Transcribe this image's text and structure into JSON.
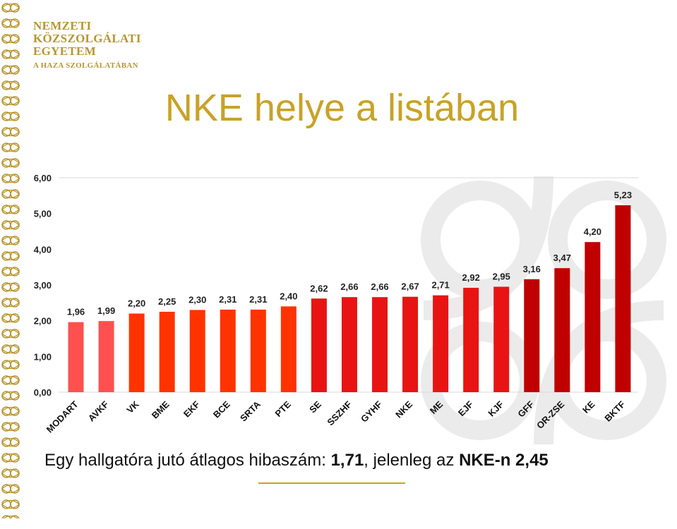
{
  "logo": {
    "line1": "NEMZETI",
    "line2": "KÖZSZOLGÁLATI",
    "line3": "EGYETEM",
    "line4": "A HAZA SZOLGÁLATÁBAN"
  },
  "title": "NKE helye a listában",
  "note": {
    "prefix": "Egy hallgatóra jutó átlagos hibaszám: ",
    "value1": "1,71",
    "middle": ", jelenleg az ",
    "value2": "NKE-n 2,45"
  },
  "colors": {
    "gold": "#c9a227",
    "light_red": "#ff5050",
    "orange_red": "#ff3300",
    "red": "#e81414",
    "dark_red": "#c00000"
  },
  "chart_data": {
    "type": "bar",
    "categories": [
      "MODART",
      "AVKF",
      "VK",
      "BME",
      "EKF",
      "BCE",
      "SRTA",
      "PTE",
      "SE",
      "SSZHF",
      "GYHF",
      "NKE",
      "ME",
      "EJF",
      "KJF",
      "GFF",
      "OR-ZSE",
      "KE",
      "BKTF"
    ],
    "values": [
      1.96,
      1.99,
      2.2,
      2.25,
      2.3,
      2.31,
      2.31,
      2.4,
      2.62,
      2.66,
      2.66,
      2.67,
      2.71,
      2.92,
      2.95,
      3.16,
      3.47,
      4.2,
      5.23
    ],
    "value_labels": [
      "1,96",
      "1,99",
      "2,20",
      "2,25",
      "2,30",
      "2,31",
      "2,31",
      "2,40",
      "2,62",
      "2,66",
      "2,66",
      "2,67",
      "2,71",
      "2,92",
      "2,95",
      "3,16",
      "3,47",
      "4,20",
      "5,23"
    ],
    "bar_colors": [
      "#ff5050",
      "#ff5050",
      "#ff3300",
      "#ff3300",
      "#ff3300",
      "#ff3300",
      "#ff3300",
      "#ff3300",
      "#e81414",
      "#e81414",
      "#e81414",
      "#e81414",
      "#e81414",
      "#e81414",
      "#e81414",
      "#c00000",
      "#c00000",
      "#c00000",
      "#c00000"
    ],
    "y_ticks": [
      "0,00",
      "1,00",
      "2,00",
      "3,00",
      "4,00",
      "5,00",
      "6,00"
    ],
    "ylim": [
      0,
      6
    ],
    "grid": false,
    "legend": "none"
  }
}
